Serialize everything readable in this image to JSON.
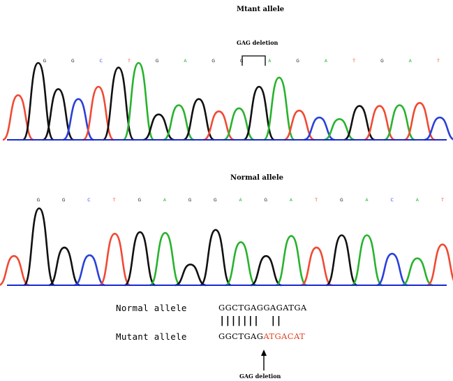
{
  "titles": {
    "mutant_panel": "Mtant allele",
    "normal_panel": "Normal allele",
    "deletion_bracket": "GAG deletion",
    "deletion_arrow": "GAG deletion"
  },
  "colors": {
    "A": "#27b32d",
    "C": "#2a40d8",
    "G": "#111111",
    "T": "#f04a33",
    "baseline": "#1a2ad0",
    "mutant_sequence_highlight": "#e04020"
  },
  "mutant_trace": {
    "base_calls": [
      "G",
      "G",
      "C",
      "T",
      "G",
      "A",
      "G",
      "G",
      "A",
      "G",
      "A",
      "T",
      "G",
      "A",
      "T"
    ],
    "peaks": [
      {
        "base": "T",
        "height": 0.58
      },
      {
        "base": "G",
        "height": 1.0
      },
      {
        "base": "G",
        "height": 0.66
      },
      {
        "base": "C",
        "height": 0.53
      },
      {
        "base": "T",
        "height": 0.69
      },
      {
        "base": "G",
        "height": 0.94
      },
      {
        "base": "A",
        "height": 1.0
      },
      {
        "base": "G",
        "height": 0.33
      },
      {
        "base": "A",
        "height": 0.45
      },
      {
        "base": "G",
        "height": 0.53
      },
      {
        "base": "T",
        "height": 0.37
      },
      {
        "base": "A",
        "height": 0.41
      },
      {
        "base": "G",
        "height": 0.69
      },
      {
        "base": "A",
        "height": 0.81
      },
      {
        "base": "T",
        "height": 0.38
      },
      {
        "base": "C",
        "height": 0.29
      },
      {
        "base": "A",
        "height": 0.27
      },
      {
        "base": "G",
        "height": 0.44
      },
      {
        "base": "T",
        "height": 0.44
      },
      {
        "base": "A",
        "height": 0.45
      },
      {
        "base": "T",
        "height": 0.48
      },
      {
        "base": "C",
        "height": 0.29
      }
    ]
  },
  "normal_trace": {
    "base_calls": [
      "G",
      "G",
      "C",
      "T",
      "G",
      "A",
      "G",
      "G",
      "A",
      "G",
      "A",
      "T",
      "G",
      "A",
      "C",
      "A",
      "T"
    ],
    "peaks": [
      {
        "base": "T",
        "height": 0.38
      },
      {
        "base": "G",
        "height": 1.0
      },
      {
        "base": "G",
        "height": 0.49
      },
      {
        "base": "C",
        "height": 0.39
      },
      {
        "base": "T",
        "height": 0.67
      },
      {
        "base": "G",
        "height": 0.69
      },
      {
        "base": "A",
        "height": 0.68
      },
      {
        "base": "G",
        "height": 0.27
      },
      {
        "base": "G",
        "height": 0.72
      },
      {
        "base": "A",
        "height": 0.56
      },
      {
        "base": "G",
        "height": 0.38
      },
      {
        "base": "A",
        "height": 0.64
      },
      {
        "base": "T",
        "height": 0.49
      },
      {
        "base": "G",
        "height": 0.65
      },
      {
        "base": "A",
        "height": 0.65
      },
      {
        "base": "C",
        "height": 0.41
      },
      {
        "base": "A",
        "height": 0.35
      },
      {
        "base": "T",
        "height": 0.53
      }
    ]
  },
  "alignment": {
    "normal_label": "Normal allele",
    "normal_sequence": "GGCTGAGGAGATGA",
    "match_bars": "|||||||  ||",
    "mutant_label": "Mutant allele",
    "mutant_sequence_prefix": "GGCTGAG",
    "mutant_sequence_shifted": "ATGACAT"
  }
}
